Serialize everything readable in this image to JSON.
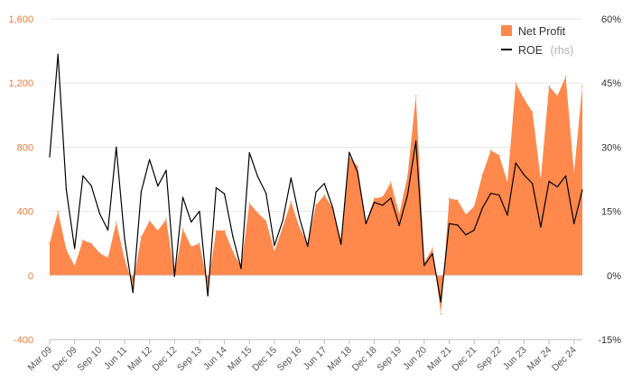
{
  "chart_data": {
    "type": "area",
    "legend": {
      "position": "top-right",
      "items": [
        {
          "label": "Net Profit",
          "suffix": ""
        },
        {
          "label": "ROE",
          "suffix": "(rhs)"
        }
      ]
    },
    "x_tick_labels": [
      "Mar 09",
      "Dec 09",
      "Sep 10",
      "Jun 11",
      "Mar 12",
      "Dec 12",
      "Sep 13",
      "Jun 14",
      "Mar 15",
      "Dec 15",
      "Sep 16",
      "Jun 17",
      "Mar 18",
      "Dec 18",
      "Sep 19",
      "Jun 20",
      "Mar 21",
      "Dec 21",
      "Sep 22",
      "Jun 23",
      "Mar 24",
      "Dec 24"
    ],
    "y_left": {
      "min": -400,
      "max": 1600,
      "ticks": [
        -400,
        0,
        400,
        800,
        1200,
        1600
      ],
      "tick_labels": [
        "-400",
        "0",
        "400",
        "800",
        "1,200",
        "1,600"
      ]
    },
    "y_right": {
      "min": -15,
      "max": 60,
      "ticks": [
        -15,
        0,
        15,
        30,
        45,
        60
      ],
      "tick_labels": [
        "-15%",
        "0%",
        "15%",
        "30%",
        "45%",
        "60%"
      ]
    },
    "grid": true,
    "colors": {
      "net_profit": "#ff884d",
      "roe": "#000000",
      "left_axis": "#ee7d3b",
      "grid": "#e6e6e6"
    },
    "series": [
      {
        "name": "Net Profit",
        "axis": "left",
        "kind": "area",
        "values": [
          200,
          400,
          160,
          60,
          220,
          200,
          140,
          110,
          330,
          100,
          -60,
          240,
          340,
          280,
          350,
          0,
          290,
          180,
          200,
          -70,
          280,
          280,
          150,
          50,
          450,
          390,
          340,
          150,
          300,
          460,
          300,
          200,
          440,
          500,
          420,
          220,
          740,
          680,
          330,
          480,
          490,
          580,
          380,
          620,
          1120,
          80,
          170,
          -240,
          480,
          470,
          380,
          430,
          630,
          780,
          750,
          580,
          1200,
          1100,
          1020,
          600,
          1180,
          1120,
          1240,
          640,
          1180
        ]
      },
      {
        "name": "ROE",
        "axis": "right",
        "kind": "line",
        "values": [
          27.7,
          51.7,
          20,
          6.3,
          23.3,
          21,
          14.5,
          10.6,
          30,
          8.6,
          -4,
          19.6,
          27.1,
          20.9,
          24.6,
          -0.2,
          18.3,
          12.5,
          15,
          -4.8,
          20.5,
          19.1,
          9.2,
          1.6,
          28.7,
          23.1,
          19.2,
          7,
          12.8,
          22.8,
          13.6,
          6.8,
          19.5,
          21.5,
          15.9,
          7.3,
          28.8,
          24.1,
          12.1,
          17.1,
          16.4,
          18.1,
          11.7,
          18.8,
          31.4,
          2.3,
          5.1,
          -6.2,
          12.1,
          11.8,
          9.5,
          10.6,
          15.8,
          19.2,
          18.8,
          14.1,
          26.3,
          23.5,
          21.5,
          11.3,
          22,
          20.7,
          23.3,
          12.1,
          20
        ]
      }
    ]
  }
}
